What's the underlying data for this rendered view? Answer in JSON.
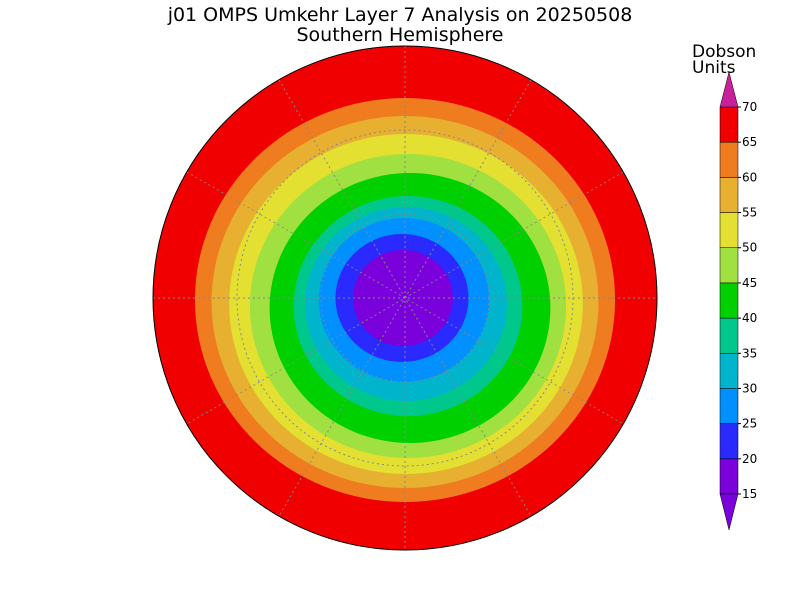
{
  "title": "j01 OMPS Umkehr Layer 7 Analysis on 20250508",
  "subtitle": "Southern Hemisphere",
  "colorbar": {
    "label_lines": [
      "Dobson",
      "Units"
    ],
    "levels": [
      15,
      20,
      25,
      30,
      35,
      40,
      45,
      50,
      55,
      60,
      65,
      70
    ],
    "colors": [
      "#7a00dc",
      "#2a2aff",
      "#0090ff",
      "#00b4cc",
      "#00c88c",
      "#00d000",
      "#a0e040",
      "#e4e032",
      "#e8b030",
      "#f07c20",
      "#f00000"
    ],
    "over_color": "#c8209a",
    "under_color": "#7a00dc"
  }
}
